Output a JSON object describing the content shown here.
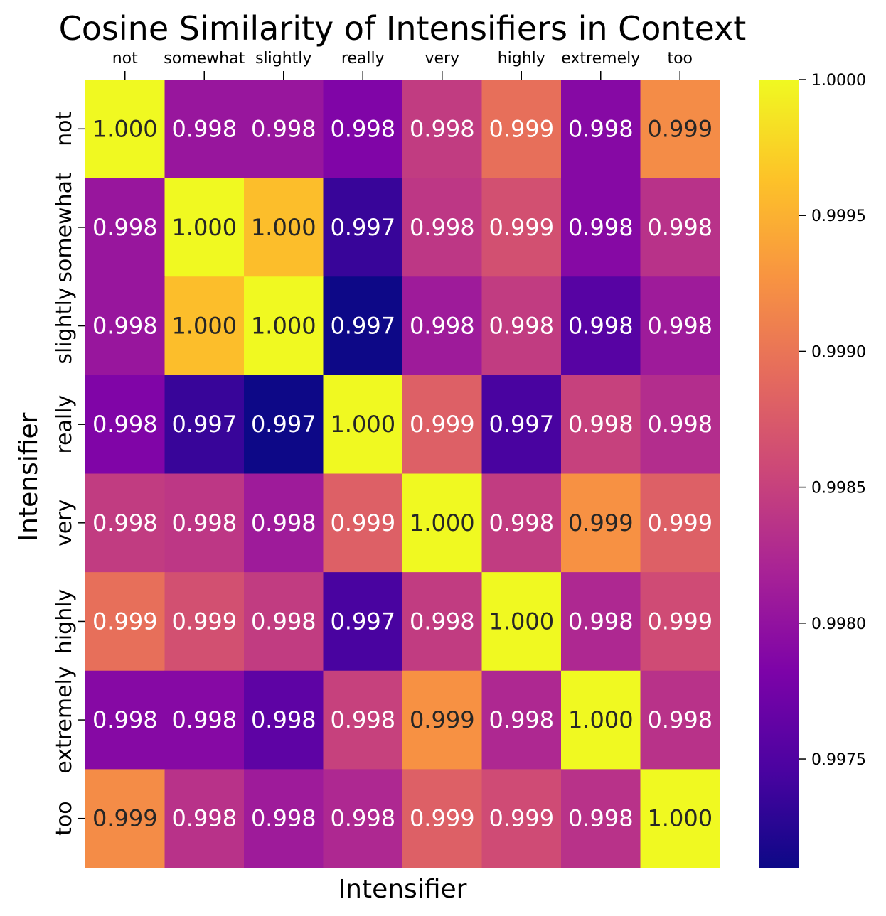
{
  "chart_data": {
    "type": "heatmap",
    "title": "Cosine Similarity of Intensifiers in Context",
    "xlabel": "Intensifier",
    "ylabel": "Intensifier",
    "x_categories": [
      "not",
      "somewhat",
      "slightly",
      "really",
      "very",
      "highly",
      "extremely",
      "too"
    ],
    "y_categories": [
      "not",
      "somewhat",
      "slightly",
      "really",
      "very",
      "highly",
      "extremely",
      "too"
    ],
    "x_axis_position": "top",
    "colormap": "plasma",
    "color_range": [
      0.9971,
      1.0
    ],
    "colorbar_ticks": [
      "0.9975",
      "0.9980",
      "0.9985",
      "0.9990",
      "0.9995",
      "1.0000"
    ],
    "values": [
      [
        1.0,
        0.99805,
        0.99805,
        0.99785,
        0.99845,
        0.99895,
        0.9979,
        0.9992
      ],
      [
        0.99805,
        1.0,
        0.9996,
        0.99735,
        0.9984,
        0.99865,
        0.9979,
        0.99835
      ],
      [
        0.99805,
        0.9996,
        1.0,
        0.9971,
        0.9981,
        0.99845,
        0.99755,
        0.9981
      ],
      [
        0.99785,
        0.99735,
        0.9971,
        1.0,
        0.9988,
        0.99745,
        0.9985,
        0.9983
      ],
      [
        0.99845,
        0.9984,
        0.9981,
        0.9988,
        1.0,
        0.99845,
        0.99925,
        0.9988
      ],
      [
        0.99895,
        0.99865,
        0.99845,
        0.99745,
        0.99845,
        1.0,
        0.99825,
        0.9986
      ],
      [
        0.9979,
        0.9979,
        0.9976,
        0.9985,
        0.99925,
        0.99825,
        1.0,
        0.99835
      ],
      [
        0.9992,
        0.99835,
        0.9981,
        0.99825,
        0.9988,
        0.9986,
        0.99835,
        1.0
      ]
    ],
    "annotations": [
      [
        "1.000",
        "0.998",
        "0.998",
        "0.998",
        "0.998",
        "0.999",
        "0.998",
        "0.999"
      ],
      [
        "0.998",
        "1.000",
        "1.000",
        "0.997",
        "0.998",
        "0.999",
        "0.998",
        "0.998"
      ],
      [
        "0.998",
        "1.000",
        "1.000",
        "0.997",
        "0.998",
        "0.998",
        "0.998",
        "0.998"
      ],
      [
        "0.998",
        "0.997",
        "0.997",
        "1.000",
        "0.999",
        "0.997",
        "0.998",
        "0.998"
      ],
      [
        "0.998",
        "0.998",
        "0.998",
        "0.999",
        "1.000",
        "0.998",
        "0.999",
        "0.999"
      ],
      [
        "0.999",
        "0.999",
        "0.998",
        "0.997",
        "0.998",
        "1.000",
        "0.998",
        "0.999"
      ],
      [
        "0.998",
        "0.998",
        "0.998",
        "0.998",
        "0.999",
        "0.998",
        "1.000",
        "0.998"
      ],
      [
        "0.999",
        "0.998",
        "0.998",
        "0.998",
        "0.999",
        "0.999",
        "0.998",
        "1.000"
      ]
    ]
  }
}
